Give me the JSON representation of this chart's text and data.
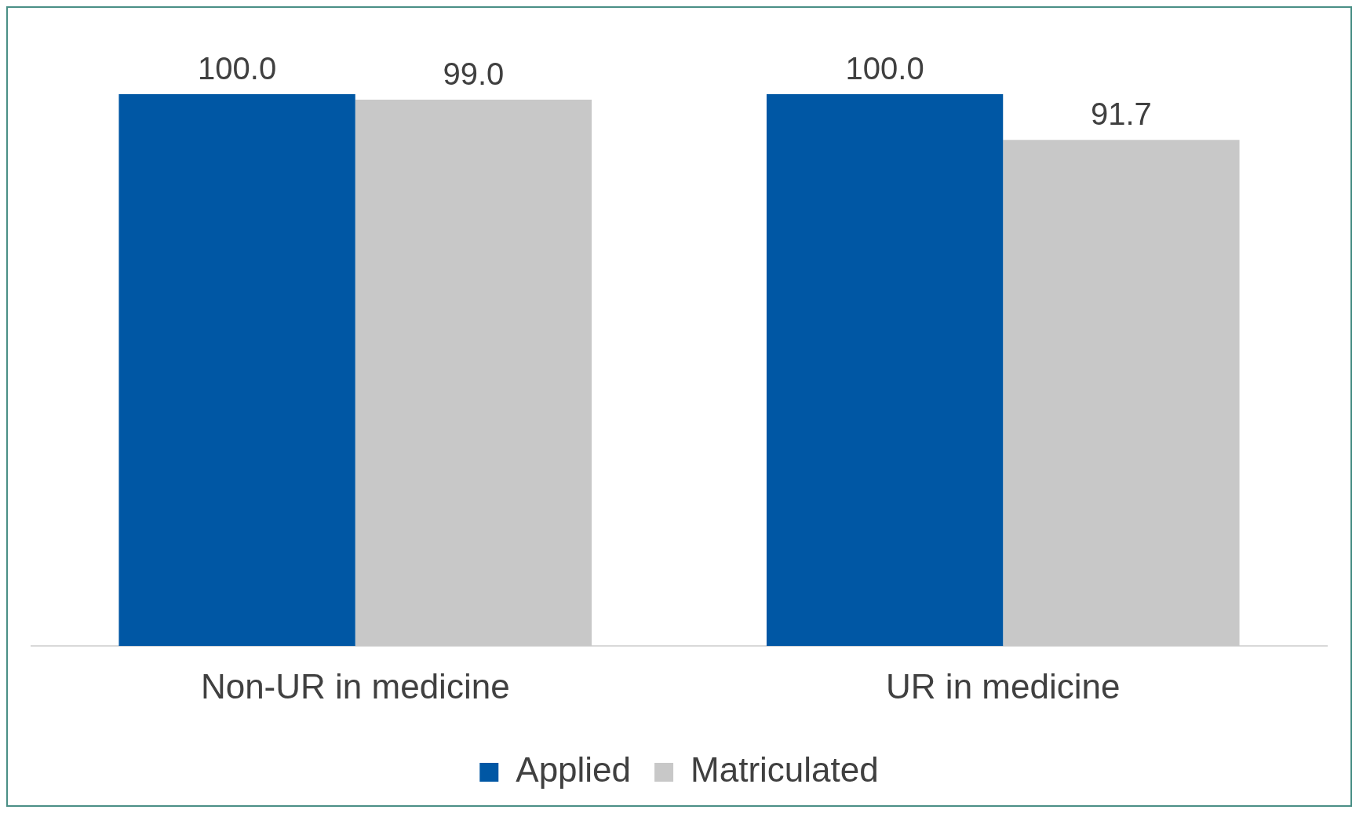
{
  "chart_data": {
    "type": "bar",
    "categories": [
      "Non-UR in medicine",
      "UR in medicine"
    ],
    "series": [
      {
        "name": "Applied",
        "color": "#0057a4",
        "values": [
          100.0,
          100.0
        ],
        "value_labels": [
          "100.0",
          "100.0"
        ]
      },
      {
        "name": "Matriculated",
        "color": "#c8c8c8",
        "values": [
          99.0,
          91.7
        ],
        "value_labels": [
          "99.0",
          "91.7"
        ]
      }
    ],
    "legend": "bottom",
    "grid": false
  }
}
